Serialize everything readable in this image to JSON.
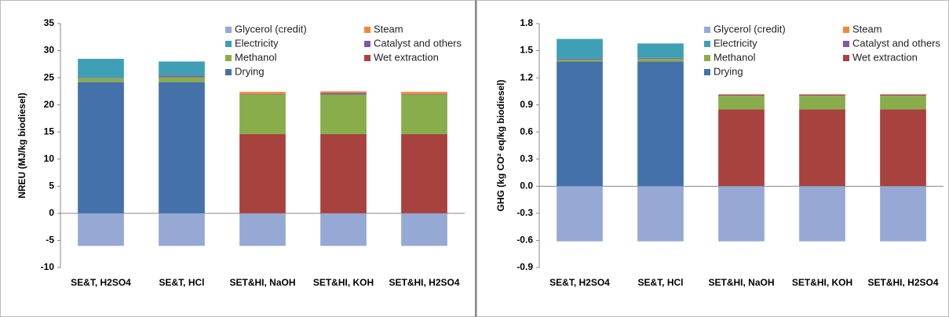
{
  "chart_data": [
    {
      "type": "bar",
      "stacked": true,
      "ylabel": "NREU (MJ/kg biodiesel)",
      "legend": "upper right",
      "grid": false,
      "categories": [
        "SE&T, H2SO4",
        "SE&T, HCl",
        "SET&HI, NaOH",
        "SET&HI, KOH",
        "SET&HI, H2SO4"
      ],
      "ylim": [
        -10,
        35
      ],
      "yticks": [
        -10,
        -5,
        0,
        5,
        10,
        15,
        20,
        25,
        30,
        35
      ],
      "series": [
        {
          "name": "Glycerol (credit)",
          "color": "#95a9d4",
          "values": [
            -6,
            -6,
            -6,
            -6,
            -6
          ]
        },
        {
          "name": "Steam",
          "color": "#f0883a",
          "values": [
            0,
            0,
            0.4,
            0.3,
            0.4
          ]
        },
        {
          "name": "Electricity",
          "color": "#3fa0b5",
          "values": [
            3.5,
            2.6,
            0,
            0,
            0
          ]
        },
        {
          "name": "Catalyst and others",
          "color": "#7b5aa6",
          "values": [
            0.1,
            0.3,
            0.1,
            0.3,
            0.1
          ]
        },
        {
          "name": "Methanol",
          "color": "#8aad4b",
          "values": [
            0.7,
            0.9,
            7.3,
            7.3,
            7.3
          ]
        },
        {
          "name": "Wet extraction",
          "color": "#a8423f",
          "values": [
            0,
            0,
            14.6,
            14.6,
            14.6
          ]
        },
        {
          "name": "Drying",
          "color": "#4471a9",
          "values": [
            24.2,
            24.2,
            0,
            0,
            0
          ]
        }
      ]
    },
    {
      "type": "bar",
      "stacked": true,
      "ylabel": "GHG (kg CO² eq/kg biodiesel)",
      "legend": "upper right",
      "grid": false,
      "categories": [
        "SE&T, H2SO4",
        "SE&T, HCl",
        "SET&HI, NaOH",
        "SET&HI, KOH",
        "SET&HI, H2SO4"
      ],
      "ylim": [
        -0.9,
        1.8
      ],
      "yticks": [
        -0.9,
        -0.6,
        -0.3,
        {
          "value": 0,
          "label": "0.0"
        },
        0.3,
        0.6,
        0.9,
        1.2,
        1.5,
        1.8
      ],
      "series": [
        {
          "name": "Glycerol (credit)",
          "color": "#95a9d4",
          "values": [
            -0.61,
            -0.61,
            -0.61,
            -0.61,
            -0.61
          ]
        },
        {
          "name": "Steam",
          "color": "#f0883a",
          "values": [
            0,
            0,
            0.01,
            0.01,
            0.01
          ]
        },
        {
          "name": "Electricity",
          "color": "#3fa0b5",
          "values": [
            0.22,
            0.16,
            0,
            0,
            0
          ]
        },
        {
          "name": "Catalyst and others",
          "color": "#7b5aa6",
          "values": [
            0.01,
            0.01,
            0.01,
            0.01,
            0.01
          ]
        },
        {
          "name": "Methanol",
          "color": "#8aad4b",
          "values": [
            0.02,
            0.03,
            0.15,
            0.15,
            0.15
          ]
        },
        {
          "name": "Wet extraction",
          "color": "#a8423f",
          "values": [
            0,
            0,
            0.85,
            0.85,
            0.85
          ]
        },
        {
          "name": "Drying",
          "color": "#4471a9",
          "values": [
            1.38,
            1.38,
            0,
            0,
            0
          ]
        }
      ]
    }
  ]
}
